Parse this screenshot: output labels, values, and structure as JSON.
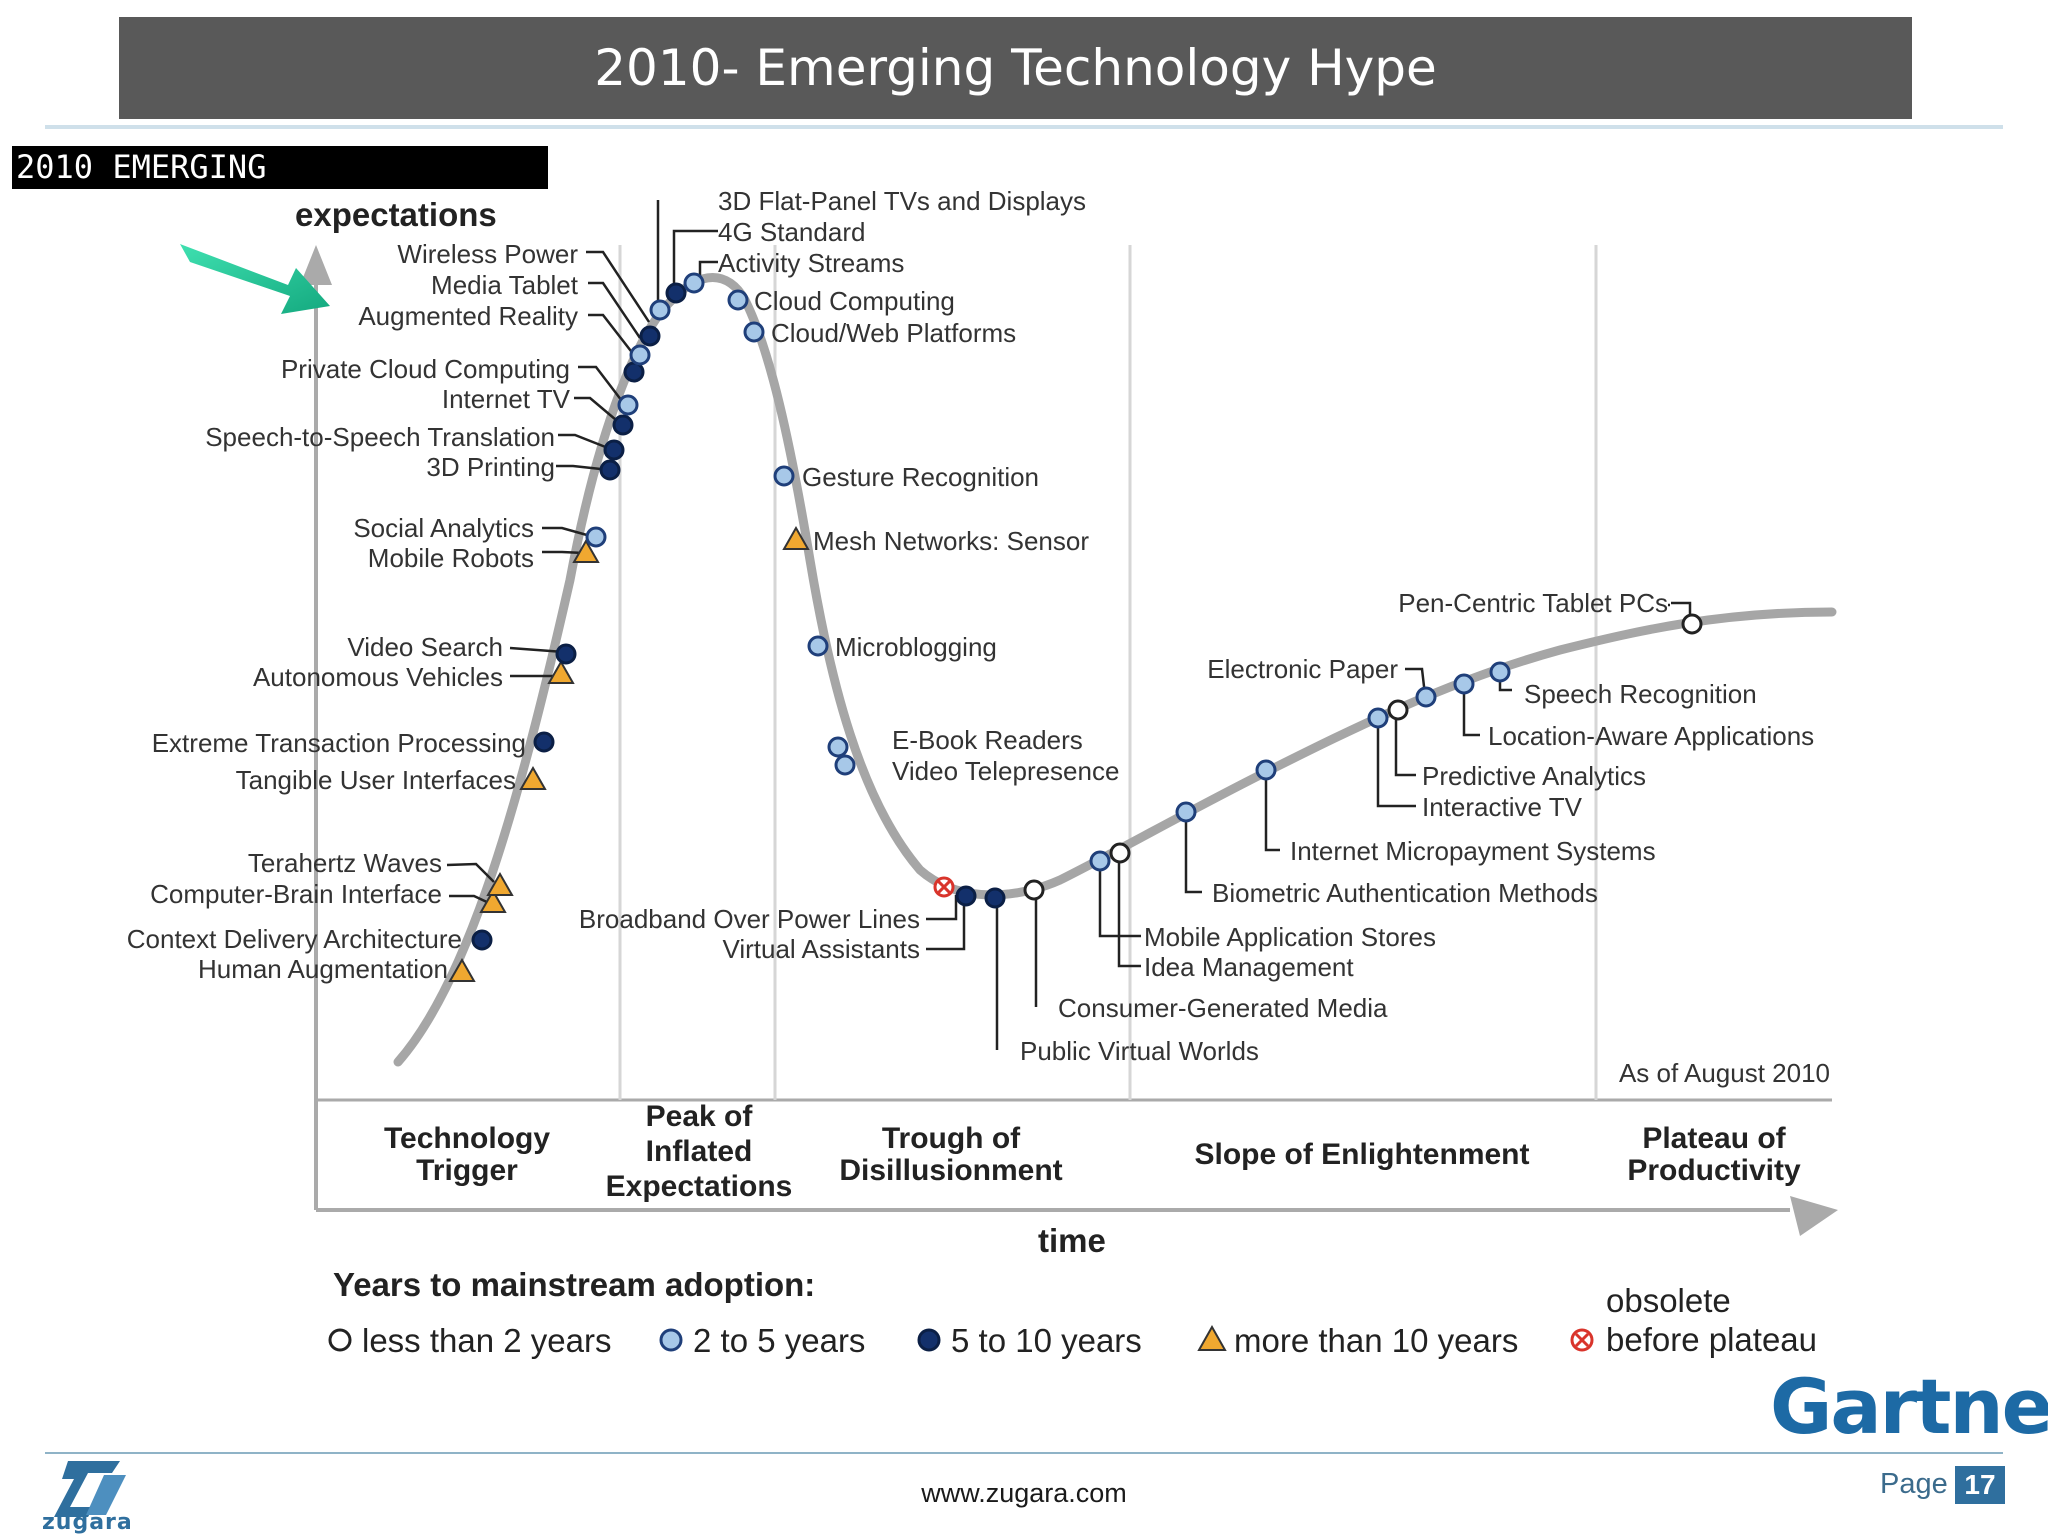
{
  "header": {
    "title": "2010- Emerging Technology Hype"
  },
  "chart": {
    "banner": "2010 EMERGING",
    "y_label": "expectations",
    "x_label": "time",
    "as_of": "As of August 2010",
    "phases": [
      "Technology Trigger",
      "Peak of Inflated Expectations",
      "Trough of Disillusionment",
      "Slope of Enlightenment",
      "Plateau of Productivity"
    ],
    "legend": {
      "title": "Years to mainstream adoption:",
      "items": [
        {
          "marker": "hollow-circle",
          "label": "less than 2 years"
        },
        {
          "marker": "light-blue-circle",
          "label": "2 to 5 years"
        },
        {
          "marker": "dark-blue-circle",
          "label": "5 to 10 years"
        },
        {
          "marker": "orange-triangle",
          "label": "more than 10 years"
        },
        {
          "marker": "red-x-circle",
          "label": [
            "obsolete",
            "before plateau"
          ]
        }
      ]
    },
    "technologies": [
      {
        "name": "Human Augmentation",
        "category": "more than 10 years",
        "phase": "Technology Trigger"
      },
      {
        "name": "Context Delivery Architecture",
        "category": "5 to 10 years",
        "phase": "Technology Trigger"
      },
      {
        "name": "Computer-Brain Interface",
        "category": "more than 10 years",
        "phase": "Technology Trigger"
      },
      {
        "name": "Terahertz Waves",
        "category": "more than 10 years",
        "phase": "Technology Trigger"
      },
      {
        "name": "Tangible User Interfaces",
        "category": "more than 10 years",
        "phase": "Technology Trigger"
      },
      {
        "name": "Extreme Transaction Processing",
        "category": "5 to 10 years",
        "phase": "Technology Trigger"
      },
      {
        "name": "Autonomous Vehicles",
        "category": "more than 10 years",
        "phase": "Technology Trigger"
      },
      {
        "name": "Video Search",
        "category": "5 to 10 years",
        "phase": "Technology Trigger"
      },
      {
        "name": "Mobile Robots",
        "category": "more than 10 years",
        "phase": "Technology Trigger"
      },
      {
        "name": "Social Analytics",
        "category": "2 to 5 years",
        "phase": "Technology Trigger"
      },
      {
        "name": "3D Printing",
        "category": "5 to 10 years",
        "phase": "Technology Trigger"
      },
      {
        "name": "Speech-to-Speech Translation",
        "category": "5 to 10 years",
        "phase": "Technology Trigger"
      },
      {
        "name": "Internet TV",
        "category": "5 to 10 years",
        "phase": "Technology Trigger"
      },
      {
        "name": "Private Cloud Computing",
        "category": "2 to 5 years",
        "phase": "Technology Trigger"
      },
      {
        "name": "Augmented Reality",
        "category": "5 to 10 years",
        "phase": "Peak of Inflated Expectations"
      },
      {
        "name": "Media Tablet",
        "category": "2 to 5 years",
        "phase": "Peak of Inflated Expectations"
      },
      {
        "name": "Wireless Power",
        "category": "5 to 10 years",
        "phase": "Peak of Inflated Expectations"
      },
      {
        "name": "3D Flat-Panel TVs and Displays",
        "category": "2 to 5 years",
        "phase": "Peak of Inflated Expectations"
      },
      {
        "name": "4G Standard",
        "category": "5 to 10 years",
        "phase": "Peak of Inflated Expectations"
      },
      {
        "name": "Activity Streams",
        "category": "2 to 5 years",
        "phase": "Peak of Inflated Expectations"
      },
      {
        "name": "Cloud Computing",
        "category": "2 to 5 years",
        "phase": "Peak of Inflated Expectations"
      },
      {
        "name": "Cloud/Web Platforms",
        "category": "2 to 5 years",
        "phase": "Peak of Inflated Expectations"
      },
      {
        "name": "Gesture Recognition",
        "category": "2 to 5 years",
        "phase": "Trough of Disillusionment"
      },
      {
        "name": "Mesh Networks: Sensor",
        "category": "more than 10 years",
        "phase": "Trough of Disillusionment"
      },
      {
        "name": "Microblogging",
        "category": "2 to 5 years",
        "phase": "Trough of Disillusionment"
      },
      {
        "name": "E-Book Readers",
        "category": "2 to 5 years",
        "phase": "Trough of Disillusionment"
      },
      {
        "name": "Video Telepresence",
        "category": "2 to 5 years",
        "phase": "Trough of Disillusionment"
      },
      {
        "name": "Broadband Over Power Lines",
        "category": "obsolete before plateau",
        "phase": "Trough of Disillusionment"
      },
      {
        "name": "Virtual Assistants",
        "category": "5 to 10 years",
        "phase": "Trough of Disillusionment"
      },
      {
        "name": "Public Virtual Worlds",
        "category": "5 to 10 years",
        "phase": "Trough of Disillusionment"
      },
      {
        "name": "Consumer-Generated Media",
        "category": "less than 2 years",
        "phase": "Trough of Disillusionment"
      },
      {
        "name": "Mobile Application Stores",
        "category": "2 to 5 years",
        "phase": "Slope of Enlightenment"
      },
      {
        "name": "Idea Management",
        "category": "less than 2 years",
        "phase": "Slope of Enlightenment"
      },
      {
        "name": "Biometric Authentication Methods",
        "category": "2 to 5 years",
        "phase": "Slope of Enlightenment"
      },
      {
        "name": "Internet Micropayment Systems",
        "category": "2 to 5 years",
        "phase": "Slope of Enlightenment"
      },
      {
        "name": "Interactive TV",
        "category": "2 to 5 years",
        "phase": "Slope of Enlightenment"
      },
      {
        "name": "Predictive Analytics",
        "category": "less than 2 years",
        "phase": "Slope of Enlightenment"
      },
      {
        "name": "Electronic Paper",
        "category": "2 to 5 years",
        "phase": "Slope of Enlightenment"
      },
      {
        "name": "Location-Aware Applications",
        "category": "2 to 5 years",
        "phase": "Slope of Enlightenment"
      },
      {
        "name": "Speech Recognition",
        "category": "2 to 5 years",
        "phase": "Slope of Enlightenment"
      },
      {
        "name": "Pen-Centric Tablet PCs",
        "category": "less than 2 years",
        "phase": "Slope of Enlightenment"
      }
    ]
  },
  "brand": {
    "vendor": "Gartner",
    "company": "zugara"
  },
  "footer": {
    "url": "www.zugara.com",
    "page_label": "Page",
    "page_number": "17"
  },
  "colors": {
    "title_bar": "#595959",
    "curve": "#a6a6a6",
    "light_blue": "#a7c8e8",
    "dark_blue": "#13306b",
    "orange": "#f0a830",
    "red": "#d9342b",
    "arrow": "#1fbf95",
    "gartner": "#1d6aa5"
  }
}
